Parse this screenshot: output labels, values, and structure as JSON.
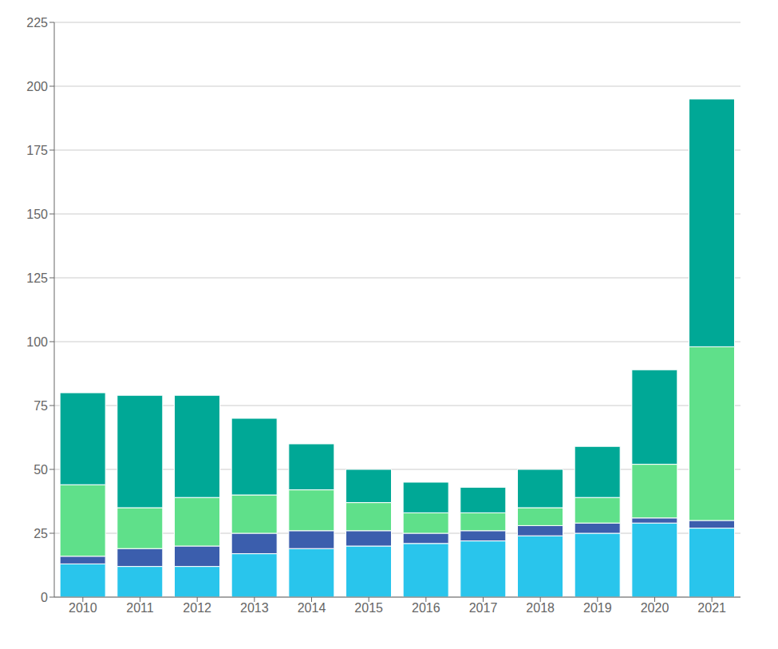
{
  "chart_data": {
    "type": "bar",
    "stacked": true,
    "categories": [
      "2010",
      "2011",
      "2012",
      "2013",
      "2014",
      "2015",
      "2016",
      "2017",
      "2018",
      "2019",
      "2020",
      "2021"
    ],
    "series": [
      {
        "color": "#29C5EC",
        "values": [
          13,
          12,
          12,
          17,
          19,
          20,
          21,
          22,
          24,
          25,
          29,
          27
        ]
      },
      {
        "color": "#3B5EAD",
        "values": [
          3,
          7,
          8,
          8,
          7,
          6,
          4,
          4,
          4,
          4,
          2,
          3
        ]
      },
      {
        "color": "#5FE08A",
        "values": [
          28,
          16,
          19,
          15,
          16,
          11,
          8,
          7,
          7,
          10,
          21,
          68
        ]
      },
      {
        "color": "#00A896",
        "values": [
          36,
          44,
          40,
          30,
          18,
          13,
          12,
          10,
          15,
          20,
          37,
          97
        ]
      }
    ],
    "ylim": [
      0,
      225
    ],
    "yticks": [
      0,
      25,
      50,
      75,
      100,
      125,
      150,
      175,
      200,
      225
    ],
    "grid": true
  }
}
